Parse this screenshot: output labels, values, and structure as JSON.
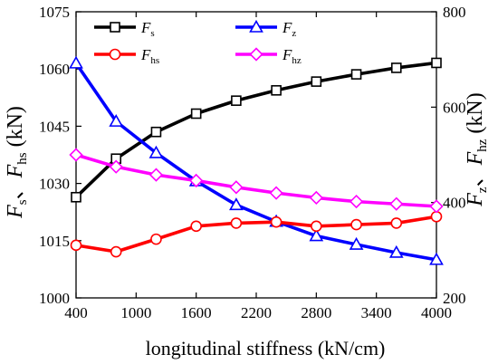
{
  "chart_data": {
    "type": "line",
    "xlabel": "longitudinal stiffness (kN/cm)",
    "xlim": [
      400,
      4000
    ],
    "xticks": [
      "400",
      "1000",
      "1600",
      "2200",
      "2800",
      "3400",
      "4000"
    ],
    "ylabel_left": {
      "main1": "F",
      "sub1": "s",
      "sep": "、",
      "main2": "F",
      "sub2": "hs",
      "unit": " (kN)"
    },
    "ylabel_right": {
      "main1": "F",
      "sub1": "z",
      "sep": "、",
      "main2": "F",
      "sub2": "hz",
      "unit": " (kN)"
    },
    "ylim_left": [
      1000,
      1075
    ],
    "yticks_left": [
      "1000",
      "1015",
      "1030",
      "1045",
      "1060",
      "1075"
    ],
    "ylim_right": [
      200,
      800
    ],
    "yticks_right": [
      "200",
      "400",
      "600",
      "800"
    ],
    "x": [
      400,
      800,
      1200,
      1600,
      2000,
      2400,
      2800,
      3200,
      3600,
      4000
    ],
    "series": [
      {
        "name_main": "F",
        "name_sub": "s",
        "axis": "left",
        "color": "#000000",
        "marker": "square",
        "values": [
          1026.4,
          1036.5,
          1043.5,
          1048.3,
          1051.7,
          1054.4,
          1056.7,
          1058.6,
          1060.3,
          1061.6
        ]
      },
      {
        "name_main": "F",
        "name_sub": "z",
        "axis": "right",
        "color": "#0000ff",
        "marker": "triangle",
        "values": [
          692,
          570,
          504,
          445,
          395,
          360,
          330,
          312,
          295,
          280
        ]
      },
      {
        "name_main": "F",
        "name_sub": "hs",
        "axis": "left",
        "color": "#ff0000",
        "marker": "circle",
        "values": [
          1013.8,
          1012.1,
          1015.4,
          1018.8,
          1019.6,
          1019.9,
          1018.8,
          1019.2,
          1019.6,
          1021.3
        ]
      },
      {
        "name_main": "F",
        "name_sub": "hz",
        "axis": "right",
        "color": "#ff00ff",
        "marker": "diamond",
        "values": [
          500,
          475,
          458,
          446,
          432,
          420,
          410,
          402,
          397,
          392
        ]
      }
    ],
    "grid": false,
    "legend_position": "top"
  }
}
